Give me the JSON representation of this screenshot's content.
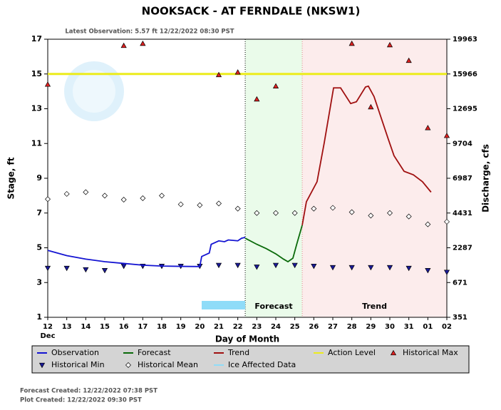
{
  "chart_data": {
    "type": "line",
    "title": "NOOKSACK - AT FERNDALE  (NKSW1)",
    "subtitle": "Latest Observation: 5.57 ft 12/22/2022 08:30 PST",
    "xlabel": "Day of Month",
    "x_month_label": "Dec",
    "ylabel": "Stage, ft",
    "y2label": "Discharge, cfs",
    "xlim": [
      12,
      33
    ],
    "xticks": [
      12,
      13,
      14,
      15,
      16,
      17,
      18,
      19,
      20,
      21,
      22,
      23,
      24,
      25,
      26,
      27,
      28,
      29,
      30,
      31,
      {
        "value": 32,
        "label": "01"
      },
      {
        "value": 33,
        "label": "02"
      }
    ],
    "ylim": [
      1,
      17
    ],
    "yticks": [
      1,
      3,
      5,
      7,
      9,
      11,
      13,
      15,
      17
    ],
    "y2lim": [
      351,
      19963
    ],
    "y2ticks": [
      351,
      671,
      2287,
      4431,
      6987,
      9704,
      12695,
      15966,
      19963
    ],
    "grid": false,
    "regions": [
      {
        "label": "Forecast",
        "x": [
          22.39,
          25.39
        ],
        "color": "#eafbea"
      },
      {
        "label": "Trend",
        "x": [
          25.39,
          33
        ],
        "color": "#fcecec"
      }
    ],
    "series": [
      {
        "name": "Observation",
        "style": "line",
        "color": "#1414d2",
        "x": [
          12,
          13,
          14,
          15,
          16,
          17,
          18,
          19,
          20,
          20.1,
          20.5,
          20.6,
          21,
          21.3,
          21.5,
          22,
          22.2,
          22.39
        ],
        "values": [
          4.85,
          4.55,
          4.35,
          4.2,
          4.1,
          4.0,
          3.95,
          3.93,
          3.92,
          4.5,
          4.7,
          5.2,
          5.4,
          5.35,
          5.45,
          5.4,
          5.55,
          5.6
        ]
      },
      {
        "name": "Forecast",
        "style": "line",
        "color": "#0a6a0a",
        "x": [
          22.39,
          23,
          23.5,
          24,
          24.4,
          24.64,
          24.9,
          25.1,
          25.39
        ],
        "values": [
          5.55,
          5.2,
          4.95,
          4.65,
          4.35,
          4.2,
          4.4,
          5.2,
          6.3
        ]
      },
      {
        "name": "Trend",
        "style": "line",
        "color": "#a01010",
        "x": [
          25.39,
          25.61,
          26.17,
          26.55,
          27.04,
          27.41,
          27.94,
          28.24,
          28.72,
          28.87,
          29.17,
          29.92,
          30.22,
          30.75,
          31.24,
          31.72,
          32.17
        ],
        "values": [
          6.3,
          7.65,
          8.8,
          11.05,
          14.2,
          14.2,
          13.3,
          13.4,
          14.25,
          14.3,
          13.7,
          11.25,
          10.3,
          9.4,
          9.2,
          8.8,
          8.2
        ]
      },
      {
        "name": "Action Level",
        "style": "hline",
        "color": "#ecec1c",
        "values": [
          15
        ]
      },
      {
        "name": "Historical Max",
        "style": "triangle-up",
        "color": "#e02020",
        "x": [
          12,
          13,
          14,
          15,
          16,
          17,
          18,
          19,
          20,
          21,
          22,
          23,
          24,
          25,
          26,
          27,
          28,
          29,
          30,
          31,
          32,
          33
        ],
        "values": [
          14.4,
          null,
          null,
          null,
          16.63,
          16.75,
          null,
          null,
          null,
          14.95,
          15.1,
          13.55,
          14.3,
          null,
          null,
          null,
          16.75,
          13.1,
          16.67,
          15.77,
          11.9,
          11.45
        ]
      },
      {
        "name": "Historical Min",
        "style": "triangle-down",
        "color": "#1a1a9a",
        "x": [
          12,
          13,
          14,
          15,
          16,
          17,
          18,
          19,
          20,
          21,
          22,
          23,
          24,
          25,
          26,
          27,
          28,
          29,
          30,
          31,
          32,
          33
        ],
        "values": [
          3.83,
          3.83,
          3.75,
          3.7,
          3.95,
          3.95,
          3.95,
          3.95,
          3.95,
          4.0,
          4.0,
          3.9,
          4.0,
          4.0,
          3.95,
          3.87,
          3.87,
          3.87,
          3.87,
          3.83,
          3.7,
          3.6
        ]
      },
      {
        "name": "Historical Mean",
        "style": "diamond",
        "color": "#ffffff",
        "x": [
          12,
          13,
          14,
          15,
          16,
          17,
          18,
          19,
          20,
          21,
          22,
          23,
          24,
          25,
          26,
          27,
          28,
          29,
          30,
          31,
          32,
          33
        ],
        "values": [
          7.8,
          8.1,
          8.2,
          8.0,
          7.77,
          7.85,
          8.0,
          7.5,
          7.45,
          7.55,
          7.25,
          7.0,
          7.0,
          7.0,
          7.25,
          7.3,
          7.05,
          6.85,
          7.0,
          6.8,
          6.35,
          6.5
        ]
      },
      {
        "name": "Ice Affected Data",
        "style": "band",
        "color": "#8fdcf8",
        "x": [
          20.1,
          22.39
        ]
      }
    ],
    "footer": [
      "Forecast Created: 12/22/2022 07:38 PST",
      "Plot Created: 12/22/2022 09:30 PST"
    ]
  }
}
